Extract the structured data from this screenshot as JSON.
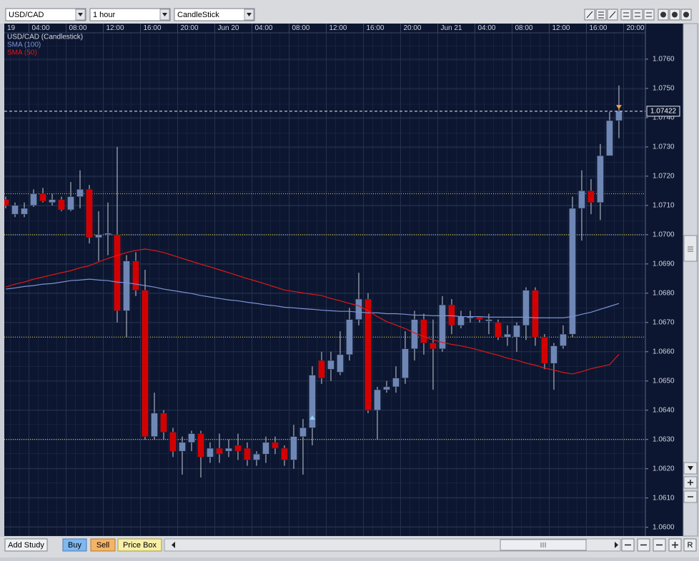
{
  "top_bar": {
    "symbol": "USD/CAD",
    "interval": "1 hour",
    "chart_type": "CandleStick"
  },
  "chart_data": {
    "type": "candlestick",
    "x": [
      1.5,
      2.5,
      3.5,
      4.5,
      5.5,
      6.5,
      7.5,
      8.5,
      9.5,
      10.5,
      11.5,
      12.5,
      13.5,
      14.5,
      15.5,
      16.5,
      17.5,
      18.5,
      19.5,
      20.5,
      21.5,
      22.5,
      23.5,
      24.5,
      25.5,
      26.5,
      27.5,
      28.5,
      29.5,
      30.5,
      31.5,
      32.5,
      33.5,
      34.5,
      35.5,
      36.5,
      37.5,
      38.5,
      39.5,
      40.5,
      41.5,
      42.5,
      43.5,
      44.5,
      45.5,
      46.5,
      47.5,
      48.5,
      49.5,
      50.5,
      51.5,
      52.5,
      53.5,
      54.5,
      55.5,
      56.5,
      57.5,
      58.5,
      59.5,
      60.5,
      61.5,
      62.5,
      63.5,
      64.5,
      65.5,
      66.5,
      67.5
    ],
    "series": [
      {
        "name": "USD/CAD (Candlestick)",
        "up_color": "#6f87b5",
        "down_color": "#d40000",
        "open": [
          1.0712,
          1.0707,
          1.0707,
          1.071,
          1.0714,
          1.0711,
          1.0712,
          1.07085,
          1.0713,
          1.07155,
          1.0699,
          1.07,
          1.07,
          1.0674,
          1.0691,
          1.0681,
          1.0631,
          1.0639,
          1.06325,
          1.0626,
          1.0629,
          1.0632,
          1.0624,
          1.0627,
          1.0626,
          1.0628,
          1.0627,
          1.0623,
          1.0625,
          1.0629,
          1.0627,
          1.0623,
          1.0631,
          1.0634,
          1.0657,
          1.0654,
          1.0653,
          1.0659,
          1.0671,
          1.0678,
          1.064,
          1.0647,
          1.0648,
          1.0651,
          1.0661,
          1.0671,
          1.0663,
          1.0661,
          1.0676,
          1.0669,
          1.06715,
          1.0672,
          1.06705,
          1.067,
          1.0665,
          1.0665,
          1.0669,
          1.0681,
          1.0665,
          1.0656,
          1.0662,
          1.0666,
          1.0709,
          1.0715,
          1.0711,
          1.0727,
          1.0739
        ],
        "high": [
          1.0713,
          1.0711,
          1.0711,
          1.07155,
          1.0716,
          1.0714,
          1.0713,
          1.0718,
          1.0722,
          1.0717,
          1.0708,
          1.0711,
          1.073,
          1.0693,
          1.0694,
          1.0688,
          1.0646,
          1.064,
          1.0634,
          1.0631,
          1.0633,
          1.0633,
          1.0629,
          1.0632,
          1.063,
          1.0632,
          1.0629,
          1.0626,
          1.0631,
          1.0631,
          1.0628,
          1.0635,
          1.0637,
          1.0655,
          1.066,
          1.066,
          1.0667,
          1.0675,
          1.0687,
          1.068,
          1.0648,
          1.065,
          1.0655,
          1.0667,
          1.0674,
          1.0673,
          1.0671,
          1.0679,
          1.0678,
          1.0674,
          1.0674,
          1.0672,
          1.0673,
          1.0671,
          1.0669,
          1.067,
          1.0682,
          1.0682,
          1.0666,
          1.0663,
          1.0669,
          1.0713,
          1.0722,
          1.0719,
          1.0731,
          1.0742,
          1.0751
        ],
        "low": [
          1.0709,
          1.0706,
          1.0706,
          1.07095,
          1.0711,
          1.071,
          1.0708,
          1.0708,
          1.0709,
          1.0697,
          1.0691,
          1.0693,
          1.067,
          1.0665,
          1.0679,
          1.063,
          1.063,
          1.063,
          1.0624,
          1.0618,
          1.0626,
          1.0617,
          1.0622,
          1.0622,
          1.0624,
          1.0623,
          1.0621,
          1.0621,
          1.0622,
          1.0625,
          1.0621,
          1.062,
          1.0618,
          1.0628,
          1.0649,
          1.065,
          1.0652,
          1.0657,
          1.0669,
          1.0639,
          1.063,
          1.0646,
          1.0646,
          1.0649,
          1.0657,
          1.0659,
          1.0647,
          1.066,
          1.0666,
          1.0668,
          1.067,
          1.067,
          1.0666,
          1.0664,
          1.0662,
          1.066,
          1.0664,
          1.0662,
          1.0654,
          1.0647,
          1.0661,
          1.0665,
          1.0698,
          1.0707,
          1.0705,
          1.0727,
          1.0733
        ],
        "close": [
          1.071,
          1.071,
          1.0709,
          1.0714,
          1.07115,
          1.0712,
          1.07085,
          1.0713,
          1.07155,
          1.0699,
          1.07,
          1.07005,
          1.0674,
          1.0691,
          1.0681,
          1.0631,
          1.0639,
          1.06325,
          1.0626,
          1.0629,
          1.0632,
          1.0624,
          1.0627,
          1.0625,
          1.0627,
          1.0626,
          1.0623,
          1.0625,
          1.0629,
          1.0627,
          1.0623,
          1.0631,
          1.0634,
          1.0652,
          1.0651,
          1.0657,
          1.0659,
          1.0671,
          1.0678,
          1.064,
          1.0647,
          1.0648,
          1.0651,
          1.0661,
          1.0671,
          1.0663,
          1.0661,
          1.0676,
          1.0669,
          1.0672,
          1.0672,
          1.0671,
          1.0671,
          1.0665,
          1.0666,
          1.0669,
          1.0681,
          1.0665,
          1.0656,
          1.0662,
          1.0666,
          1.0709,
          1.0715,
          1.0711,
          1.0727,
          1.0739,
          1.07422
        ]
      },
      {
        "name": "SMA (100)",
        "color": "#7d93d6",
        "values": [
          1.06814,
          1.06818,
          1.06823,
          1.06826,
          1.06831,
          1.06833,
          1.06838,
          1.06843,
          1.06845,
          1.06848,
          1.06845,
          1.06843,
          1.06838,
          1.06836,
          1.06831,
          1.06826,
          1.06821,
          1.06814,
          1.06809,
          1.06804,
          1.06799,
          1.06792,
          1.06787,
          1.06782,
          1.06777,
          1.06774,
          1.06769,
          1.06765,
          1.0676,
          1.06757,
          1.06752,
          1.0675,
          1.06747,
          1.06745,
          1.06742,
          1.0674,
          1.06738,
          1.06738,
          1.06735,
          1.06733,
          1.06733,
          1.0673,
          1.0673,
          1.06728,
          1.06725,
          1.06725,
          1.06723,
          1.06723,
          1.06723,
          1.0672,
          1.0672,
          1.0672,
          1.06718,
          1.06718,
          1.06718,
          1.06718,
          1.06718,
          1.06716,
          1.06716,
          1.06716,
          1.06716,
          1.0672,
          1.06728,
          1.06735,
          1.06745,
          1.06755,
          1.06765
        ]
      },
      {
        "name": "SMA (50)",
        "color": "#e01818",
        "values": [
          1.06821,
          1.06831,
          1.06838,
          1.06848,
          1.06855,
          1.06863,
          1.0687,
          1.06877,
          1.06887,
          1.06894,
          1.06907,
          1.06919,
          1.06929,
          1.06939,
          1.06946,
          1.06951,
          1.06946,
          1.06939,
          1.06929,
          1.06919,
          1.06909,
          1.06899,
          1.0689,
          1.0688,
          1.0687,
          1.0686,
          1.0685,
          1.06841,
          1.06831,
          1.06821,
          1.06811,
          1.06806,
          1.06801,
          1.06796,
          1.06792,
          1.06782,
          1.06774,
          1.06765,
          1.06757,
          1.0674,
          1.0672,
          1.06703,
          1.06691,
          1.06679,
          1.06664,
          1.06652,
          1.0664,
          1.06632,
          1.06625,
          1.0662,
          1.06613,
          1.06605,
          1.06596,
          1.06588,
          1.06578,
          1.06571,
          1.06561,
          1.06554,
          1.06544,
          1.06537,
          1.06529,
          1.06524,
          1.06532,
          1.06542,
          1.06549,
          1.06556,
          1.06591
        ]
      }
    ],
    "levels": [
      1.0714,
      1.07,
      1.0665,
      1.063
    ],
    "level_color": "#e8d84a",
    "last_price": 1.07422,
    "markers": [
      {
        "x": 34.5,
        "y": 1.06375,
        "color": "#8fd0ff",
        "direction": "up"
      },
      {
        "x": 67.5,
        "y": 1.07436,
        "color": "#f0a050",
        "direction": "down"
      }
    ],
    "xlim": [
      1.5,
      70.35
    ],
    "xticks": [
      {
        "value": 0,
        "label": "19"
      },
      {
        "value": 4,
        "label": "04:00"
      },
      {
        "value": 8,
        "label": "08:00"
      },
      {
        "value": 12,
        "label": "12:00"
      },
      {
        "value": 16,
        "label": "16:00"
      },
      {
        "value": 20,
        "label": "20:00"
      },
      {
        "value": 24,
        "label": "Jun 20"
      },
      {
        "value": 28,
        "label": "04:00"
      },
      {
        "value": 32,
        "label": "08:00"
      },
      {
        "value": 36,
        "label": "12:00"
      },
      {
        "value": 40,
        "label": "16:00"
      },
      {
        "value": 44,
        "label": "20:00"
      },
      {
        "value": 48,
        "label": "Jun 21"
      },
      {
        "value": 52,
        "label": "04:00"
      },
      {
        "value": 56,
        "label": "08:00"
      },
      {
        "value": 60,
        "label": "12:00"
      },
      {
        "value": 64,
        "label": "16:00"
      },
      {
        "value": 68,
        "label": "20:00"
      }
    ],
    "ylim": [
      1.0597,
      1.0769
    ],
    "yticks": [
      {
        "value": 1.06,
        "label": "1.0600"
      },
      {
        "value": 1.061,
        "label": "1.0610"
      },
      {
        "value": 1.062,
        "label": "1.0620"
      },
      {
        "value": 1.063,
        "label": "1.0630"
      },
      {
        "value": 1.064,
        "label": "1.0640"
      },
      {
        "value": 1.065,
        "label": "1.0650"
      },
      {
        "value": 1.066,
        "label": "1.0660"
      },
      {
        "value": 1.067,
        "label": "1.0670"
      },
      {
        "value": 1.068,
        "label": "1.0680"
      },
      {
        "value": 1.069,
        "label": "1.0690"
      },
      {
        "value": 1.07,
        "label": "1.0700"
      },
      {
        "value": 1.071,
        "label": "1.0710"
      },
      {
        "value": 1.072,
        "label": "1.0720"
      },
      {
        "value": 1.073,
        "label": "1.0730"
      },
      {
        "value": 1.074,
        "label": "1.0740"
      },
      {
        "value": 1.075,
        "label": "1.0750"
      },
      {
        "value": 1.076,
        "label": "1.0760"
      }
    ],
    "grid": true
  },
  "bottom_bar": {
    "buttons": [
      "Add Study",
      "Buy",
      "Sell",
      "Price Box"
    ],
    "reset": "R"
  }
}
